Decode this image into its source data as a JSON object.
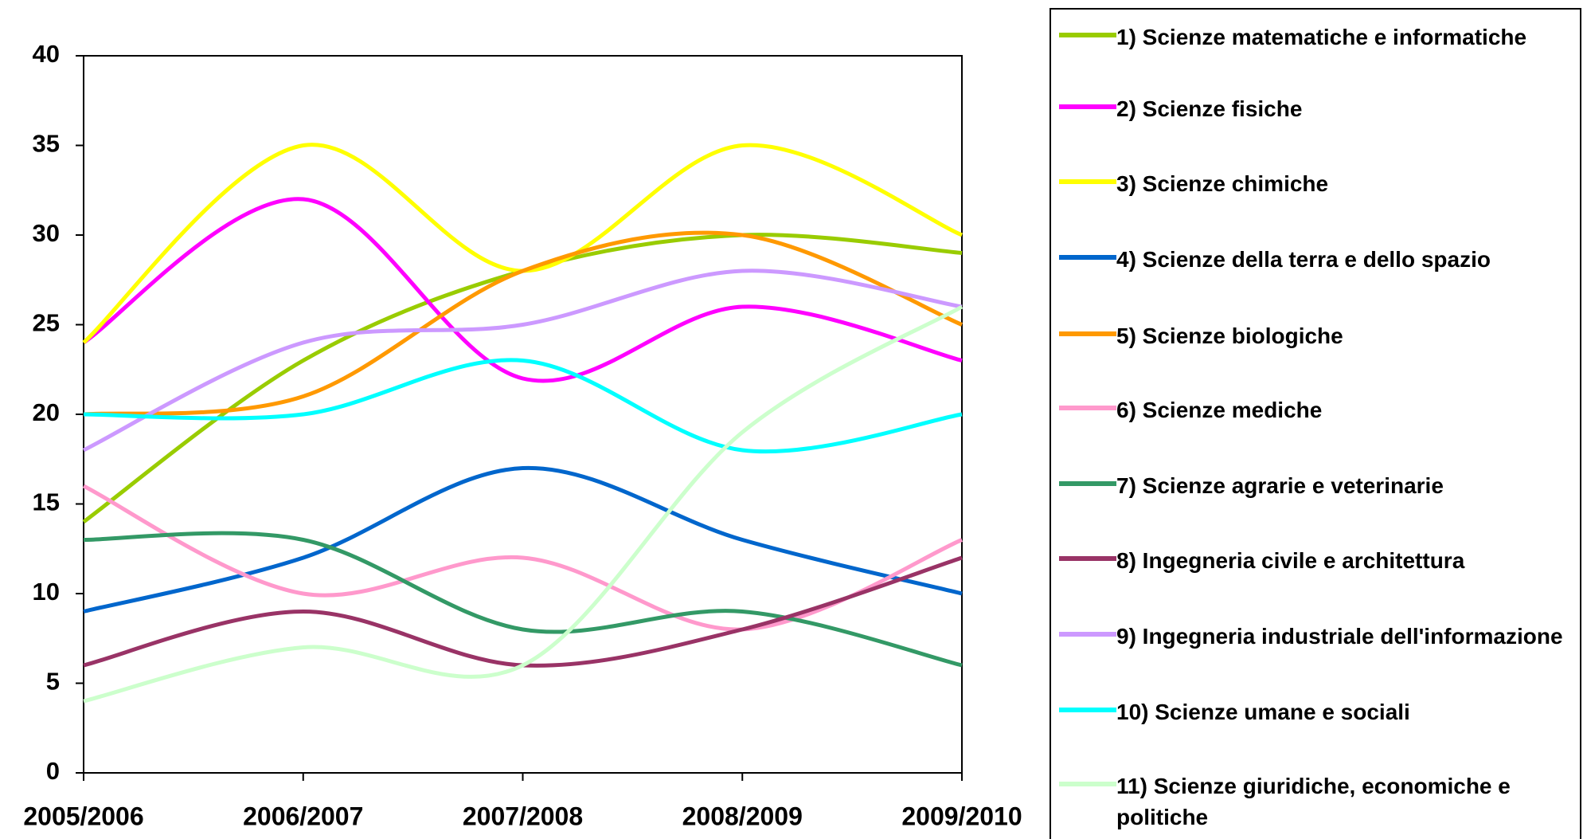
{
  "chart_data": {
    "type": "line",
    "categories": [
      "2005/2006",
      "2006/2007",
      "2007/2008",
      "2008/2009",
      "2009/2010"
    ],
    "ylim": [
      0,
      40
    ],
    "yticks": [
      0,
      5,
      10,
      15,
      20,
      25,
      30,
      35,
      40
    ],
    "series": [
      {
        "name": "1) Scienze matematiche e informatiche",
        "color": "#99cc00",
        "values": [
          14,
          23,
          28,
          30,
          29
        ]
      },
      {
        "name": "2) Scienze fisiche",
        "color": "#ff00ff",
        "values": [
          24,
          32,
          22,
          26,
          23
        ]
      },
      {
        "name": "3) Scienze chimiche",
        "color": "#ffff00",
        "values": [
          24,
          35,
          28,
          35,
          30
        ]
      },
      {
        "name": "4) Scienze della terra e dello spazio",
        "color": "#0066cc",
        "values": [
          9,
          12,
          17,
          13,
          10
        ]
      },
      {
        "name": "5) Scienze biologiche",
        "color": "#ff9900",
        "values": [
          20,
          21,
          28,
          30,
          25
        ]
      },
      {
        "name": "6) Scienze mediche",
        "color": "#ff99cc",
        "values": [
          16,
          10,
          12,
          8,
          13
        ]
      },
      {
        "name": "7) Scienze agrarie e veterinarie",
        "color": "#339966",
        "values": [
          13,
          13,
          8,
          9,
          6
        ]
      },
      {
        "name": "8) Ingegneria civile e architettura",
        "color": "#993366",
        "values": [
          6,
          9,
          6,
          8,
          12
        ]
      },
      {
        "name": "9) Ingegneria industriale dell'informazione",
        "color": "#cc99ff",
        "values": [
          18,
          24,
          25,
          28,
          26
        ]
      },
      {
        "name": "10) Scienze umane e sociali",
        "color": "#00ffff",
        "values": [
          20,
          20,
          23,
          18,
          20
        ]
      },
      {
        "name": "11) Scienze giuridiche, economiche e politiche",
        "color": "#ccffcc",
        "values": [
          4,
          7,
          6,
          19,
          26
        ]
      }
    ]
  }
}
